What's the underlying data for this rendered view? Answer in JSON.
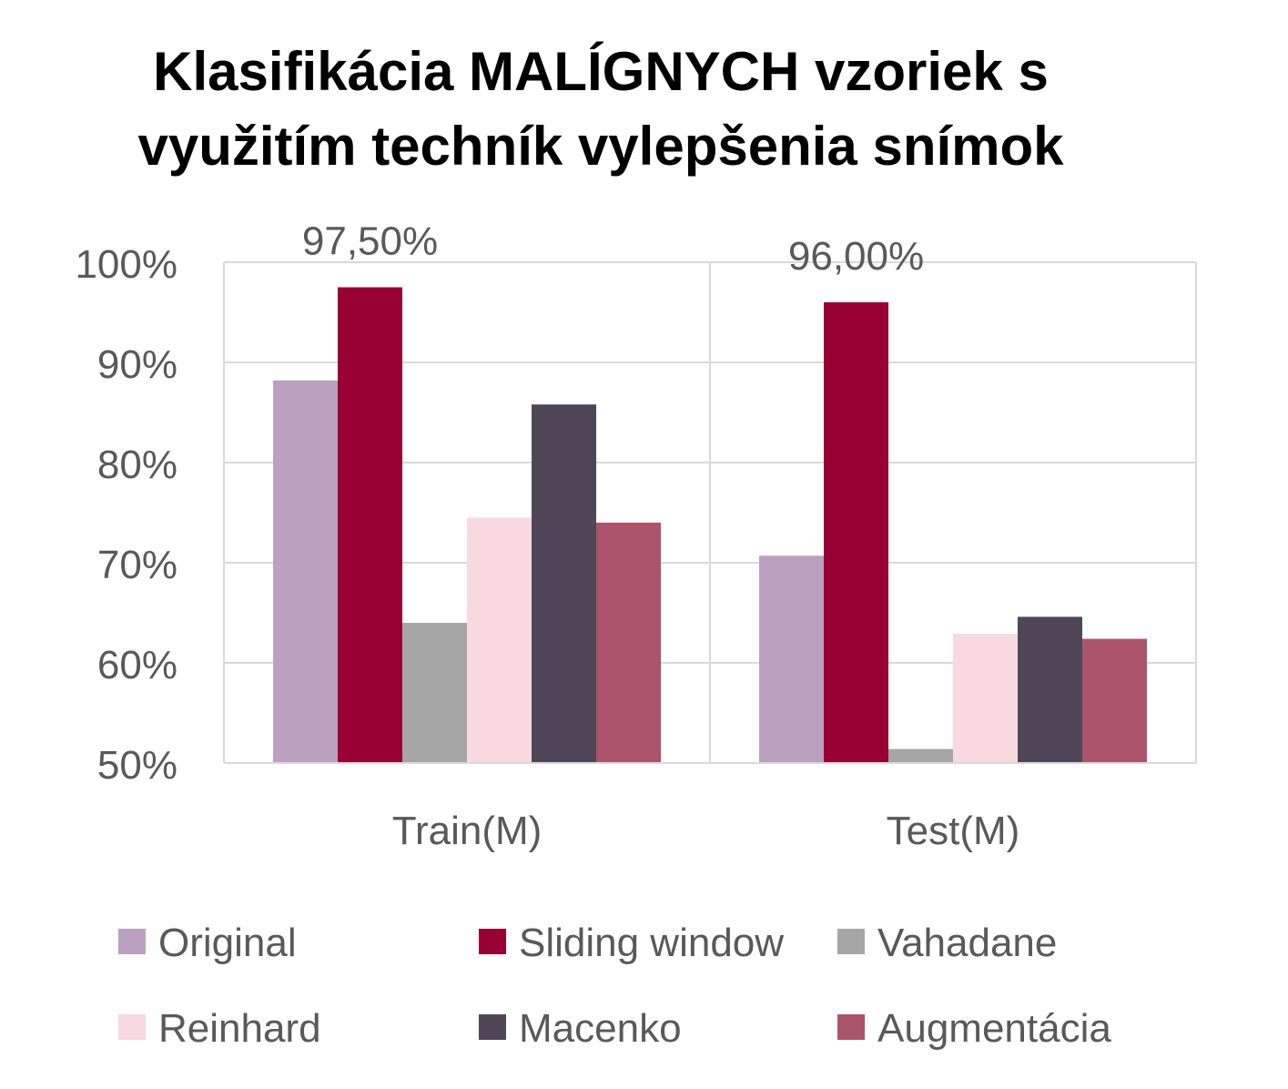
{
  "chart_data": {
    "type": "bar",
    "title_lines": [
      "Klasifikácia MALÍGNYCH vzoriek s",
      "využitím techník vylepšenia snímok"
    ],
    "categories": [
      "Train(M)",
      "Test(M)"
    ],
    "series": [
      {
        "name": "Original",
        "color": "#bba0bf",
        "values": [
          88.2,
          70.7
        ]
      },
      {
        "name": "Sliding window",
        "color": "#990033",
        "values": [
          97.5,
          96.0
        ]
      },
      {
        "name": "Vahadane",
        "color": "#a6a6a6",
        "values": [
          64.0,
          51.4
        ]
      },
      {
        "name": "Reinhard",
        "color": "#f7d9df",
        "values": [
          74.5,
          62.9
        ]
      },
      {
        "name": "Macenko",
        "color": "#4f4757",
        "values": [
          85.8,
          64.6
        ]
      },
      {
        "name": "Augmentácia",
        "color": "#ab546b",
        "values": [
          74.0,
          62.4
        ]
      }
    ],
    "data_labels": [
      {
        "category": "Train(M)",
        "series": "Sliding window",
        "text": "97,50%"
      },
      {
        "category": "Test(M)",
        "series": "Sliding window",
        "text": "96,00%"
      }
    ],
    "ylim": [
      50,
      100
    ],
    "yticks": [
      100,
      90,
      80,
      70,
      60,
      50
    ],
    "ytick_labels": [
      "100%",
      "90%",
      "80%",
      "70%",
      "60%",
      "50%"
    ],
    "xlabel": "",
    "ylabel": "",
    "grid": true,
    "legend_position": "bottom"
  }
}
